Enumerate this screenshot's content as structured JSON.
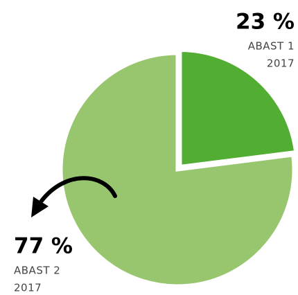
{
  "chart_data": {
    "type": "pie",
    "categories": [
      [
        "ABAST 1",
        "2017"
      ],
      [
        "ABAST 2",
        "2017"
      ]
    ],
    "values": [
      23,
      77
    ],
    "value_labels": [
      "23 %",
      "77 %"
    ],
    "colors": [
      "#52ae32",
      "#97c66f"
    ]
  }
}
